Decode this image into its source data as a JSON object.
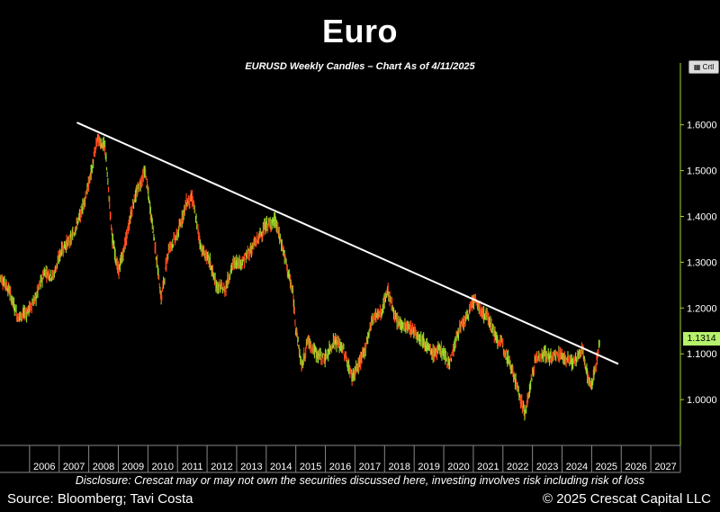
{
  "header": {
    "title": "Euro",
    "subtitle": "EURUSD Weekly Candles – Chart As of 4/11/2025"
  },
  "footer": {
    "disclosure": "Disclosure: Crescat may or may not own the securities discussed here, investing involves risk including risk of loss",
    "source": "Source: Bloomberg; Tavi Costa",
    "copyright": "© 2025 Crescat Capital LLC"
  },
  "controls": {
    "crtl_label": "Crtl"
  },
  "chart_data": {
    "type": "line",
    "series": [
      {
        "values_label": "EURUSD",
        "x": [
          2005.0,
          2005.3,
          2005.6,
          2005.9,
          2006.2,
          2006.5,
          2006.8,
          2007.1,
          2007.4,
          2007.7,
          2008.0,
          2008.3,
          2008.55,
          2008.8,
          2009.0,
          2009.2,
          2009.5,
          2009.9,
          2010.2,
          2010.45,
          2010.7,
          2011.0,
          2011.3,
          2011.5,
          2011.8,
          2012.1,
          2012.3,
          2012.6,
          2012.9,
          2013.2,
          2013.5,
          2013.8,
          2014.0,
          2014.3,
          2014.6,
          2014.9,
          2015.0,
          2015.2,
          2015.4,
          2015.7,
          2016.0,
          2016.3,
          2016.6,
          2016.9,
          2017.0,
          2017.3,
          2017.6,
          2017.9,
          2018.1,
          2018.4,
          2018.7,
          2019.0,
          2019.3,
          2019.6,
          2019.9,
          2020.2,
          2020.5,
          2020.8,
          2021.0,
          2021.3,
          2021.5,
          2021.8,
          2022.0,
          2022.3,
          2022.6,
          2022.75,
          2022.9,
          2023.1,
          2023.4,
          2023.6,
          2023.9,
          2024.1,
          2024.4,
          2024.7,
          2024.9,
          2025.0,
          2025.15,
          2025.28
        ],
        "values": [
          1.27,
          1.24,
          1.18,
          1.19,
          1.22,
          1.28,
          1.27,
          1.33,
          1.35,
          1.4,
          1.47,
          1.57,
          1.55,
          1.35,
          1.28,
          1.33,
          1.43,
          1.5,
          1.36,
          1.22,
          1.33,
          1.36,
          1.43,
          1.44,
          1.33,
          1.3,
          1.25,
          1.24,
          1.3,
          1.3,
          1.33,
          1.36,
          1.38,
          1.39,
          1.32,
          1.23,
          1.16,
          1.07,
          1.13,
          1.1,
          1.09,
          1.13,
          1.11,
          1.05,
          1.06,
          1.1,
          1.18,
          1.19,
          1.24,
          1.17,
          1.16,
          1.15,
          1.13,
          1.1,
          1.11,
          1.08,
          1.15,
          1.18,
          1.22,
          1.19,
          1.18,
          1.13,
          1.12,
          1.07,
          1.0,
          0.97,
          1.02,
          1.09,
          1.1,
          1.09,
          1.1,
          1.09,
          1.08,
          1.11,
          1.04,
          1.03,
          1.08,
          1.1314
        ]
      }
    ],
    "trendline": {
      "x": [
        2007.6,
        2025.9
      ],
      "values": [
        1.605,
        1.078
      ]
    },
    "last_value": "1.1314",
    "x_ticks": [
      "2006",
      "2007",
      "2008",
      "2009",
      "2010",
      "2011",
      "2012",
      "2013",
      "2014",
      "2015",
      "2016",
      "2017",
      "2018",
      "2019",
      "2020",
      "2021",
      "2022",
      "2023",
      "2024",
      "2025",
      "2026",
      "2027"
    ],
    "y_ticks": [
      "1.0000",
      "1.1000",
      "1.2000",
      "1.3000",
      "1.4000",
      "1.5000",
      "1.6000"
    ],
    "xlim": [
      2005.0,
      2028.0
    ],
    "ylim": [
      0.9,
      1.68
    ],
    "colors": {
      "up": "#9fd82a",
      "down": "#ff4a1c",
      "trendline": "#ffffff",
      "axis": "#9fd82a",
      "badge": "#b6f26b"
    },
    "grid": false,
    "legend": "none"
  }
}
